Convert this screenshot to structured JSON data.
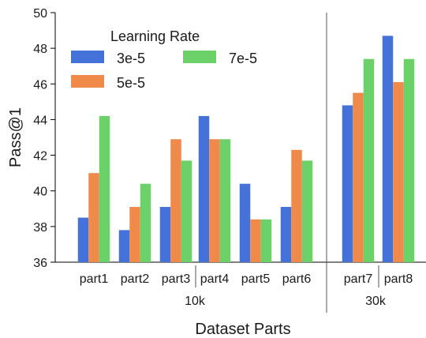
{
  "chart_data": {
    "type": "bar",
    "categories": [
      "part1",
      "part2",
      "part3",
      "part4",
      "part5",
      "part6",
      "part7",
      "part8"
    ],
    "groups": [
      {
        "label": "10k",
        "categories": [
          "part1",
          "part2",
          "part3",
          "part4",
          "part5",
          "part6"
        ]
      },
      {
        "label": "30k",
        "categories": [
          "part7",
          "part8"
        ]
      }
    ],
    "series": [
      {
        "name": "3e-5",
        "color": "#4472d9",
        "values": [
          38.5,
          37.8,
          39.1,
          44.2,
          40.4,
          39.1,
          44.8,
          48.7
        ]
      },
      {
        "name": "5e-5",
        "color": "#ef8a4b",
        "values": [
          41.0,
          39.1,
          42.9,
          42.9,
          38.4,
          42.3,
          45.5,
          46.1
        ]
      },
      {
        "name": "7e-5",
        "color": "#6dd16a",
        "values": [
          44.2,
          40.4,
          41.7,
          42.9,
          38.4,
          41.7,
          47.4,
          47.4
        ]
      }
    ],
    "xlabel": "Dataset Parts",
    "ylabel": "Pass@1",
    "ylim": [
      36,
      50
    ],
    "yticks": [
      36,
      38,
      40,
      42,
      44,
      46,
      48,
      50
    ],
    "legend": {
      "title": "Learning Rate",
      "placement": "top-left"
    },
    "grid": false
  }
}
